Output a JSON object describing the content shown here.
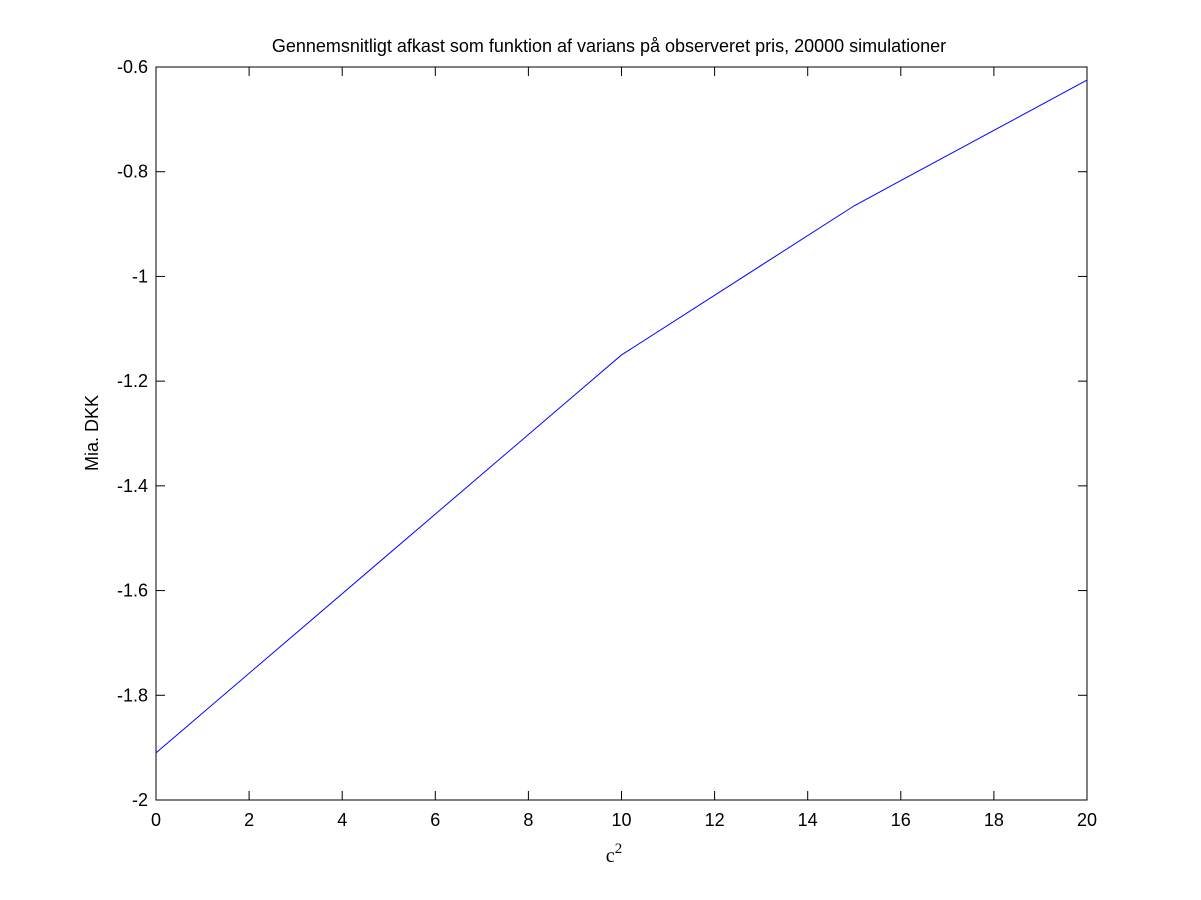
{
  "chart_data": {
    "type": "line",
    "title": "Gennemsnitligt afkast som funktion af varians på observeret pris, 20000 simulationer",
    "xlabel_base": "c",
    "xlabel_sup": "2",
    "ylabel": "Mia. DKK",
    "xlim": [
      0,
      20
    ],
    "ylim": [
      -2,
      -0.6
    ],
    "xticks": [
      0,
      2,
      4,
      6,
      8,
      10,
      12,
      14,
      16,
      18,
      20
    ],
    "xtick_labels": [
      "0",
      "2",
      "4",
      "6",
      "8",
      "10",
      "12",
      "14",
      "16",
      "18",
      "20"
    ],
    "yticks": [
      -2,
      -1.8,
      -1.6,
      -1.4,
      -1.2,
      -1,
      -0.8,
      -0.6
    ],
    "ytick_labels": [
      "-2",
      "-1.8",
      "-1.6",
      "-1.4",
      "-1.2",
      "-1",
      "-0.8",
      "-0.6"
    ],
    "grid": false,
    "series": [
      {
        "color": "#0000ff",
        "x": [
          0,
          10,
          15,
          20
        ],
        "y": [
          -1.91,
          -1.15,
          -0.865,
          -0.625
        ]
      }
    ]
  }
}
